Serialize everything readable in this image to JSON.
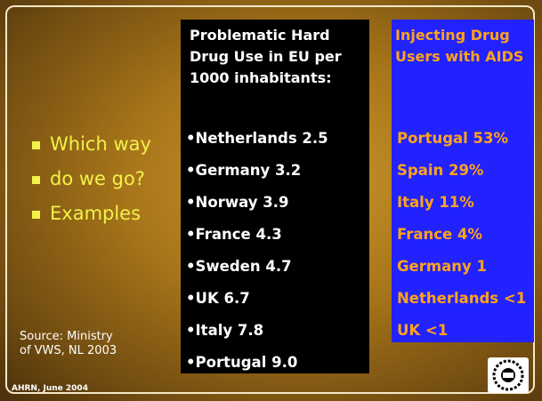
{
  "bullets": [
    "Which way",
    "do we go?",
    "Examples"
  ],
  "drug_use": {
    "title": "Problematic Hard Drug Use in EU per 1000 inhabitants:",
    "items": [
      "Netherlands 2.5",
      "Germany 3.2",
      "Norway 3.9",
      "France 4.3",
      "Sweden 4.7",
      "UK 6.7",
      "Italy 7.8",
      "Portugal 9.0"
    ]
  },
  "aids": {
    "title": "Injecting Drug Users with AIDS",
    "items": [
      "Portugal 53%",
      "Spain 29%",
      "Italy 11%",
      "France 4%",
      "Germany 1",
      "Netherlands <1",
      "UK <1"
    ]
  },
  "source": "Source: Ministry of VWS, NL 2003",
  "footer": "AHRN, June 2004"
}
